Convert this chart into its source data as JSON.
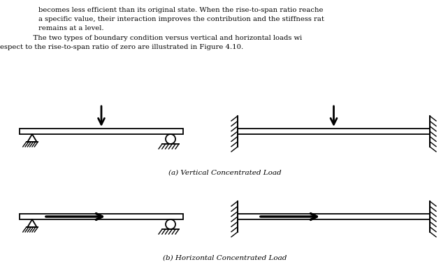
{
  "text_lines_indented": [
    "becomes less efficient than its original state. When the rise-to-span ratio reache",
    "a specific value, their interaction improves the contribution and the stiffness rat",
    "remains at a level."
  ],
  "para1": "    The two types of boundary condition versus vertical and horizontal loads wi",
  "para2": "espect to the rise-to-span ratio of zero are illustrated in Figure 4.10.",
  "caption_a": "(a) Vertical Concentrated Load",
  "caption_b": "(b) Horizontal Concentrated Load",
  "bg_color": "#ffffff"
}
